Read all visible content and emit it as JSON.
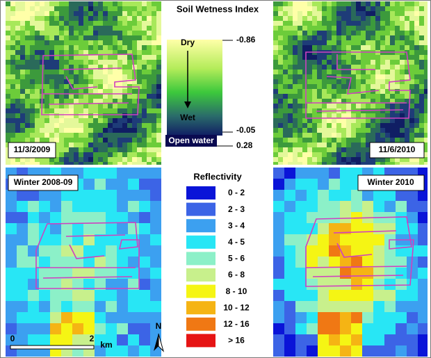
{
  "panels": [
    {
      "label": "11/3/2009"
    },
    {
      "label": "11/6/2010"
    },
    {
      "label": "Winter 2008-09"
    },
    {
      "label": "Winter 2010"
    }
  ],
  "soil_wetness": {
    "title": "Soil Wetness Index",
    "dry": "Dry",
    "wet": "Wet",
    "open_water": "Open water",
    "ticks": [
      "-0.86",
      "-0.05",
      "0.28"
    ]
  },
  "reflectivity": {
    "title": "Reflectivity",
    "classes": [
      {
        "label": "0 - 2",
        "color": "#0a14d8"
      },
      {
        "label": "2 - 3",
        "color": "#3c64e6"
      },
      {
        "label": "3 - 4",
        "color": "#3ca0f0"
      },
      {
        "label": "4 - 5",
        "color": "#28e6f5"
      },
      {
        "label": "5 - 6",
        "color": "#8cf0c8"
      },
      {
        "label": "6 - 8",
        "color": "#c8f08c"
      },
      {
        "label": "8 - 10",
        "color": "#f5f514"
      },
      {
        "label": "10 - 12",
        "color": "#f5b414"
      },
      {
        "label": "12 - 16",
        "color": "#f07814"
      },
      {
        "label": "> 16",
        "color": "#e61414"
      }
    ]
  },
  "scale_bar": {
    "labels": [
      "0",
      "2"
    ],
    "unit": "km"
  },
  "north": "N"
}
